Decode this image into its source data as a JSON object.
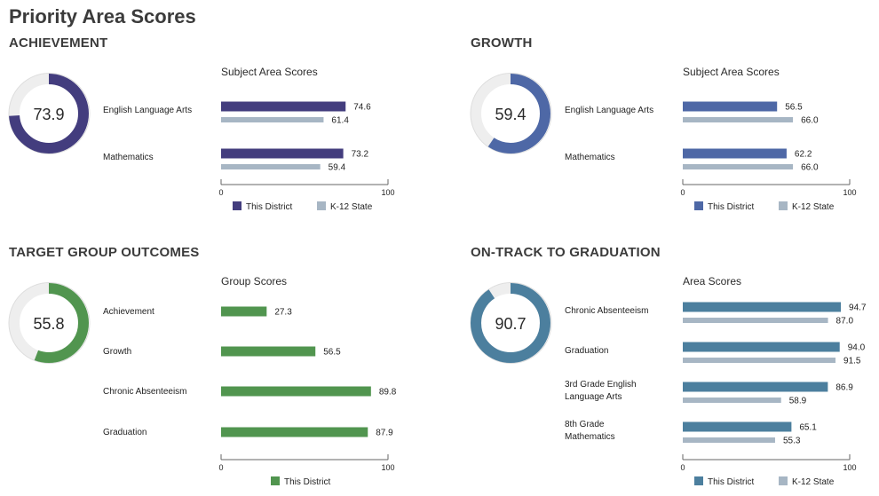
{
  "page_title": "Priority Area Scores",
  "chart_data": [
    {
      "type": "bar",
      "section_title": "ACHIEVEMENT",
      "donut": {
        "value": 73.9,
        "label": "73.9",
        "color": "#433d7e",
        "track_color": "#eeeeee"
      },
      "subtitle": "Subject Area Scores",
      "categories": [
        "English Language Arts",
        "Mathematics"
      ],
      "series": [
        {
          "name": "This District",
          "values": [
            74.6,
            73.2
          ],
          "color": "#433d7e"
        },
        {
          "name": "K-12 State",
          "values": [
            61.4,
            59.4
          ],
          "color": "#a7b6c4"
        }
      ],
      "xlim": [
        0,
        100
      ],
      "ticks": [
        "0",
        "100"
      ],
      "legend": "bottom"
    },
    {
      "type": "bar",
      "section_title": "GROWTH",
      "donut": {
        "value": 59.4,
        "label": "59.4",
        "color": "#4e68a6",
        "track_color": "#eeeeee"
      },
      "subtitle": "Subject Area Scores",
      "categories": [
        "English Language Arts",
        "Mathematics"
      ],
      "series": [
        {
          "name": "This District",
          "values": [
            56.5,
            62.2
          ],
          "color": "#4e68a6"
        },
        {
          "name": "K-12 State",
          "values": [
            66.0,
            66.0
          ],
          "color": "#a7b6c4"
        }
      ],
      "xlim": [
        0,
        100
      ],
      "ticks": [
        "0",
        "100"
      ],
      "legend": "bottom"
    },
    {
      "type": "bar",
      "section_title": "TARGET GROUP OUTCOMES",
      "donut": {
        "value": 55.8,
        "label": "55.8",
        "color": "#51954f",
        "track_color": "#eeeeee"
      },
      "subtitle": "Group Scores",
      "categories": [
        "Achievement",
        "Growth",
        "Chronic Absenteeism",
        "Graduation"
      ],
      "series": [
        {
          "name": "This District",
          "values": [
            27.3,
            56.5,
            89.8,
            87.9
          ],
          "color": "#51954f"
        }
      ],
      "xlim": [
        0,
        100
      ],
      "ticks": [
        "0",
        "100"
      ],
      "legend": "bottom"
    },
    {
      "type": "bar",
      "section_title": "ON-TRACK TO GRADUATION",
      "donut": {
        "value": 90.7,
        "label": "90.7",
        "color": "#4c7f9e",
        "track_color": "#eeeeee"
      },
      "subtitle": "Area Scores",
      "categories": [
        [
          "Chronic Absenteeism"
        ],
        [
          "Graduation"
        ],
        [
          "3rd Grade English",
          "Language Arts"
        ],
        [
          "8th Grade",
          "Mathematics"
        ]
      ],
      "series": [
        {
          "name": "This District",
          "values": [
            94.7,
            94.0,
            86.9,
            65.1
          ],
          "color": "#4c7f9e"
        },
        {
          "name": "K-12 State",
          "values": [
            87.0,
            91.5,
            58.9,
            55.3
          ],
          "color": "#a7b6c4"
        }
      ],
      "xlim": [
        0,
        100
      ],
      "ticks": [
        "0",
        "100"
      ],
      "legend": "bottom"
    }
  ]
}
